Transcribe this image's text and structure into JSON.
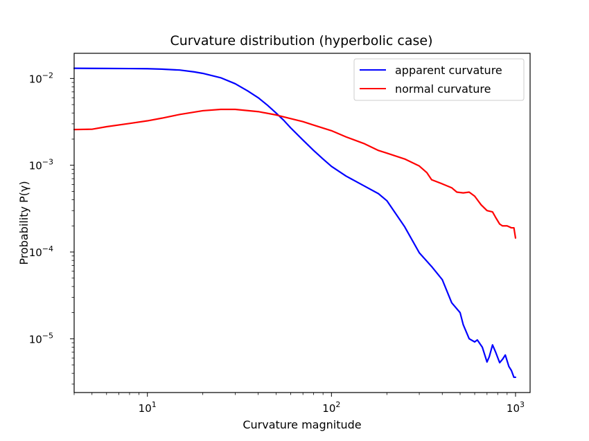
{
  "chart_data": {
    "type": "line",
    "title": "Curvature distribution (hyperbolic case)",
    "xlabel": "Curvature magnitude",
    "ylabel": "Probability P(γ)",
    "xscale": "log",
    "yscale": "log",
    "xlim": [
      4,
      1200
    ],
    "ylim": [
      2.4e-06,
      0.0195
    ],
    "grid": false,
    "legend_position": "top-right",
    "x_ticks": [
      {
        "value": 10,
        "base": "10",
        "exp": "1"
      },
      {
        "value": 100,
        "base": "10",
        "exp": "2"
      },
      {
        "value": 1000,
        "base": "10",
        "exp": "3"
      }
    ],
    "y_ticks": [
      {
        "value": 1e-05,
        "base": "10",
        "exp": "−5"
      },
      {
        "value": 0.0001,
        "base": "10",
        "exp": "−4"
      },
      {
        "value": 0.001,
        "base": "10",
        "exp": "−3"
      },
      {
        "value": 0.01,
        "base": "10",
        "exp": "−2"
      }
    ],
    "series": [
      {
        "name": "apparent curvature",
        "color": "#0000ff",
        "points": [
          [
            4,
            0.0131
          ],
          [
            6,
            0.01305
          ],
          [
            8,
            0.013
          ],
          [
            10,
            0.01295
          ],
          [
            12,
            0.0128
          ],
          [
            15,
            0.0125
          ],
          [
            18,
            0.0119
          ],
          [
            20,
            0.01145
          ],
          [
            25,
            0.0102
          ],
          [
            30,
            0.0087
          ],
          [
            35,
            0.0072
          ],
          [
            40,
            0.006
          ],
          [
            45,
            0.0049
          ],
          [
            50,
            0.004
          ],
          [
            55,
            0.0033
          ],
          [
            60,
            0.0027
          ],
          [
            70,
            0.00195
          ],
          [
            80,
            0.00148
          ],
          [
            90,
            0.00118
          ],
          [
            100,
            0.00097
          ],
          [
            120,
            0.00075
          ],
          [
            150,
            0.00058
          ],
          [
            180,
            0.00047
          ],
          [
            200,
            0.00039
          ],
          [
            250,
            0.000195
          ],
          [
            300,
            9.8e-05
          ],
          [
            350,
            6.8e-05
          ],
          [
            400,
            4.8e-05
          ],
          [
            450,
            2.6e-05
          ],
          [
            500,
            2e-05
          ],
          [
            520,
            1.45e-05
          ],
          [
            560,
            1e-05
          ],
          [
            600,
            9.2e-06
          ],
          [
            620,
            9.7e-06
          ],
          [
            660,
            8e-06
          ],
          [
            700,
            5.4e-06
          ],
          [
            720,
            6.2e-06
          ],
          [
            750,
            8.5e-06
          ],
          [
            780,
            7e-06
          ],
          [
            820,
            5.3e-06
          ],
          [
            850,
            5.8e-06
          ],
          [
            880,
            6.5e-06
          ],
          [
            920,
            4.8e-06
          ],
          [
            950,
            4.3e-06
          ],
          [
            980,
            3.6e-06
          ],
          [
            1000,
            3.6e-06
          ]
        ]
      },
      {
        "name": "normal curvature",
        "color": "#ff0000",
        "points": [
          [
            4,
            0.00258
          ],
          [
            5,
            0.0026
          ],
          [
            6,
            0.00278
          ],
          [
            8,
            0.00303
          ],
          [
            10,
            0.00325
          ],
          [
            12,
            0.00349
          ],
          [
            15,
            0.00385
          ],
          [
            20,
            0.00425
          ],
          [
            25,
            0.0044
          ],
          [
            30,
            0.0044
          ],
          [
            40,
            0.00415
          ],
          [
            50,
            0.0038
          ],
          [
            60,
            0.00345
          ],
          [
            70,
            0.00318
          ],
          [
            80,
            0.0029
          ],
          [
            100,
            0.0025
          ],
          [
            120,
            0.00212
          ],
          [
            150,
            0.00178
          ],
          [
            180,
            0.00148
          ],
          [
            200,
            0.00138
          ],
          [
            250,
            0.00118
          ],
          [
            300,
            0.00098
          ],
          [
            330,
            0.00082
          ],
          [
            350,
            0.00068
          ],
          [
            400,
            0.00061
          ],
          [
            450,
            0.00055
          ],
          [
            480,
            0.00049
          ],
          [
            520,
            0.00048
          ],
          [
            560,
            0.00049
          ],
          [
            600,
            0.00044
          ],
          [
            650,
            0.00035
          ],
          [
            700,
            0.0003
          ],
          [
            750,
            0.00029
          ],
          [
            780,
            0.00025
          ],
          [
            820,
            0.00021
          ],
          [
            850,
            0.0002
          ],
          [
            900,
            0.0002
          ],
          [
            950,
            0.00019
          ],
          [
            980,
            0.00019
          ],
          [
            1000,
            0.000145
          ]
        ]
      }
    ]
  }
}
